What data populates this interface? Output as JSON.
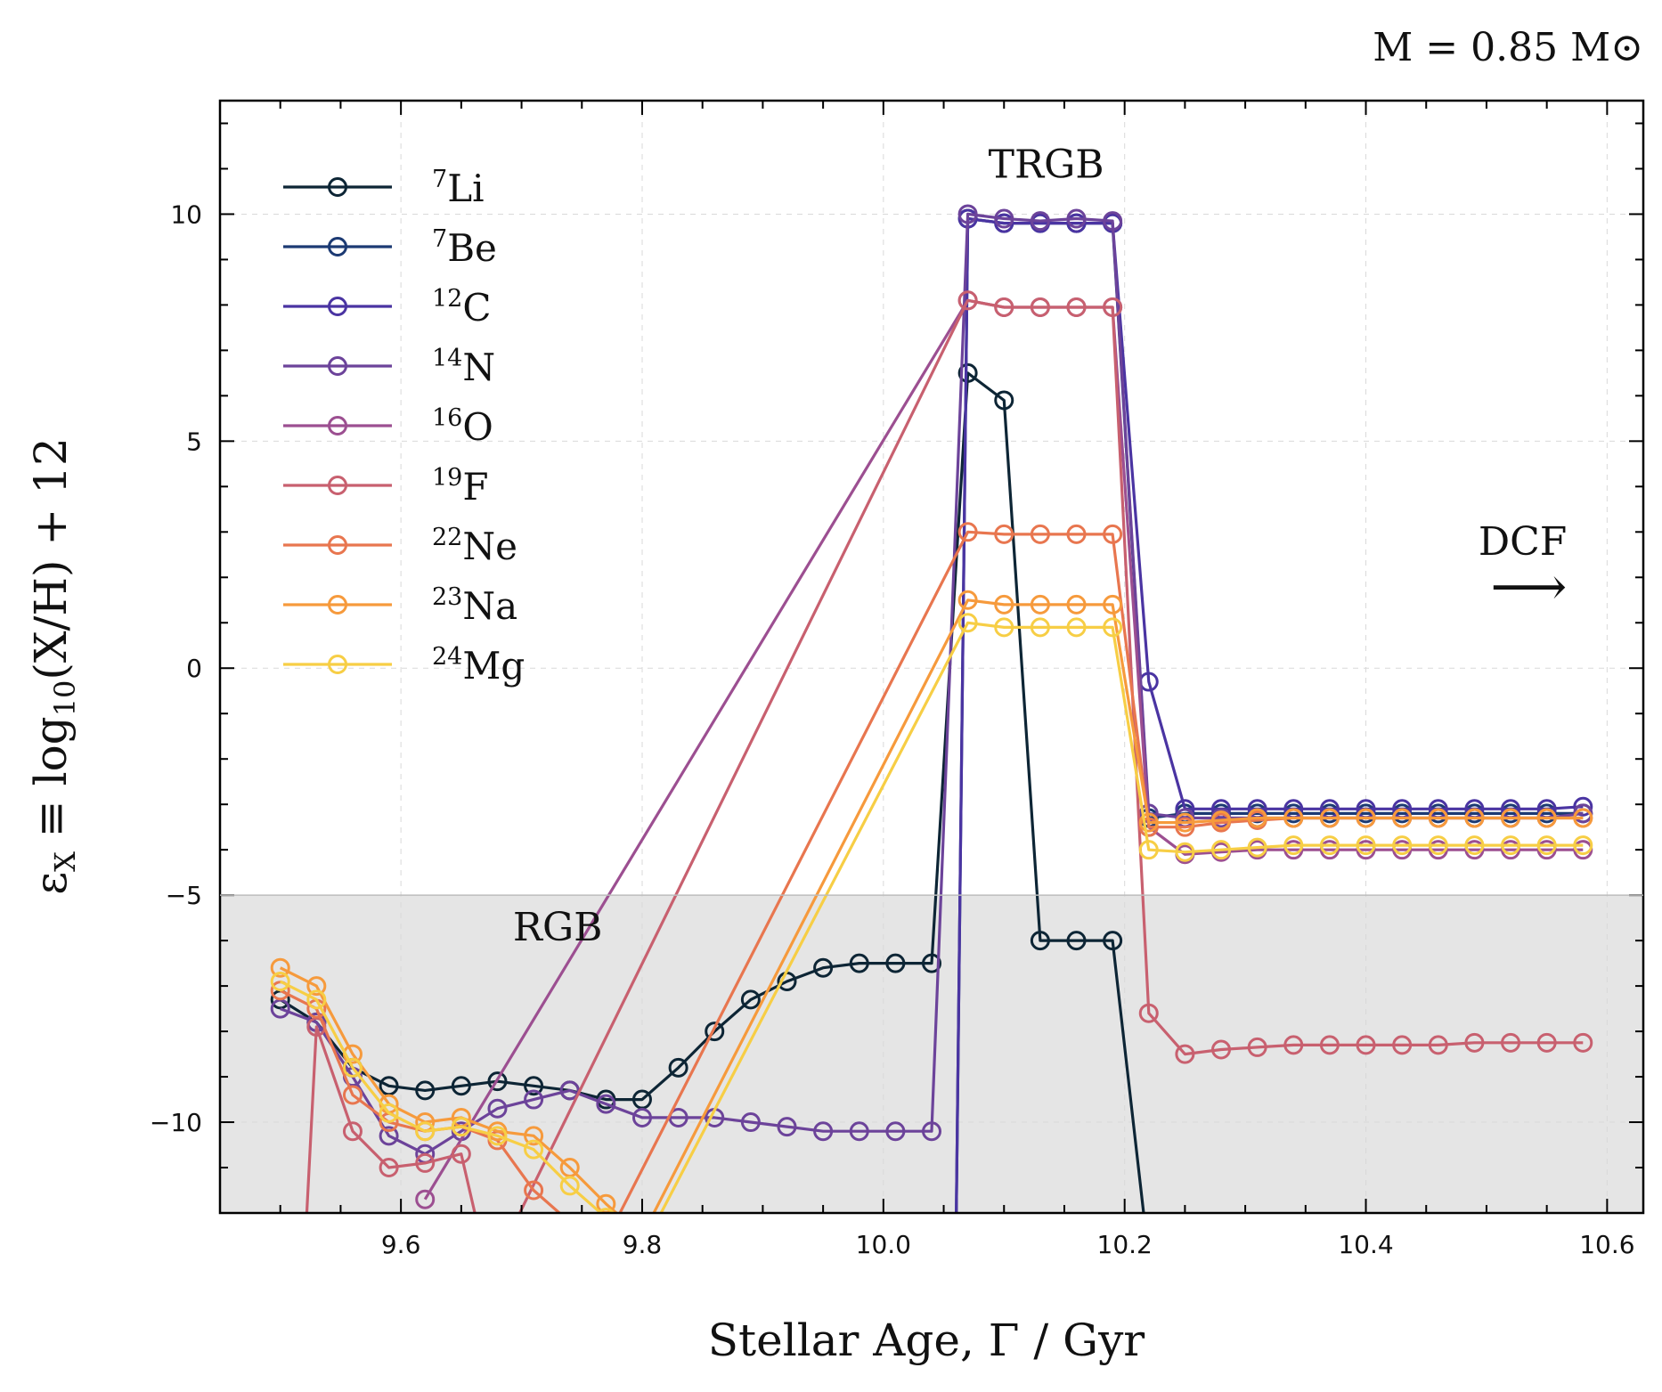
{
  "chart_data": {
    "type": "line",
    "title": "M = 0.85 M⊙",
    "xlabel": "Stellar Age, Γ / Gyr",
    "ylabel": "εX ≡ log10(X/H) + 12",
    "xlim": [
      9.45,
      10.63
    ],
    "ylim": [
      -12,
      12.5
    ],
    "xticks": [
      9.6,
      9.8,
      10.0,
      10.2,
      10.4,
      10.6
    ],
    "xtick_labels": [
      "9.6",
      "9.8",
      "10.0",
      "10.2",
      "10.4",
      "10.6"
    ],
    "yticks": [
      -10,
      -5,
      0,
      5,
      10
    ],
    "ytick_labels": [
      "−10",
      "−5",
      "0",
      "5",
      "10"
    ],
    "grid": true,
    "legend_position": "top-left",
    "shaded_region": {
      "ymin": -12,
      "ymax": -5,
      "color": "#e5e5e5"
    },
    "annotations": [
      {
        "text": "TRGB",
        "x": 10.135,
        "y": 10.8
      },
      {
        "text": "RGB",
        "x": 9.73,
        "y": -6.0
      },
      {
        "text": "DCF",
        "x": 10.53,
        "y": 2.5
      },
      {
        "text": "⟶",
        "x": 10.535,
        "y": 1.4
      }
    ],
    "series": [
      {
        "name": "7Li",
        "sup": "7",
        "el": "Li",
        "color": "#0d2535",
        "x": [
          9.5,
          9.53,
          9.56,
          9.59,
          9.62,
          9.65,
          9.68,
          9.71,
          9.74,
          9.77,
          9.8,
          9.83,
          9.86,
          9.89,
          9.92,
          9.95,
          9.98,
          10.01,
          10.04,
          10.07,
          10.1,
          10.13,
          10.16,
          10.19,
          10.22
        ],
        "y": [
          -7.3,
          -7.8,
          -8.8,
          -9.2,
          -9.3,
          -9.2,
          -9.1,
          -9.2,
          -9.3,
          -9.5,
          -9.5,
          -8.8,
          -8.0,
          -7.3,
          -6.9,
          -6.6,
          -6.5,
          -6.5,
          -6.5,
          6.5,
          5.9,
          -6.0,
          -6.0,
          -6.0,
          -13.0
        ]
      },
      {
        "name": "7Be",
        "sup": "7",
        "el": "Be",
        "color": "#1c3a73",
        "x": [
          10.06,
          10.07,
          10.1,
          10.13,
          10.16,
          10.19,
          10.22,
          10.25,
          10.28,
          10.31,
          10.34,
          10.37,
          10.4,
          10.43,
          10.46,
          10.49,
          10.52,
          10.55,
          10.58
        ],
        "y": [
          -13,
          9.9,
          9.8,
          9.8,
          9.8,
          9.8,
          -3.3,
          -3.2,
          -3.2,
          -3.2,
          -3.2,
          -3.2,
          -3.2,
          -3.2,
          -3.2,
          -3.2,
          -3.2,
          -3.2,
          -3.2
        ]
      },
      {
        "name": "12C",
        "sup": "12",
        "el": "C",
        "color": "#4a34a2",
        "x": [
          10.06,
          10.07,
          10.1,
          10.13,
          10.16,
          10.19,
          10.22,
          10.25,
          10.28,
          10.31,
          10.34,
          10.37,
          10.4,
          10.43,
          10.46,
          10.49,
          10.52,
          10.55,
          10.58
        ],
        "y": [
          -13,
          9.9,
          9.8,
          9.8,
          9.8,
          9.8,
          -0.3,
          -3.1,
          -3.1,
          -3.1,
          -3.1,
          -3.1,
          -3.1,
          -3.1,
          -3.1,
          -3.1,
          -3.1,
          -3.1,
          -3.05
        ]
      },
      {
        "name": "14N",
        "sup": "14",
        "el": "N",
        "color": "#6c439a",
        "x": [
          9.5,
          9.53,
          9.56,
          9.59,
          9.62,
          9.65,
          9.68,
          9.71,
          9.74,
          9.77,
          9.8,
          9.83,
          9.86,
          9.89,
          9.92,
          9.95,
          9.98,
          10.01,
          10.04,
          10.07,
          10.1,
          10.13,
          10.16,
          10.19,
          10.22,
          10.25,
          10.28,
          10.31,
          10.34,
          10.37,
          10.4,
          10.43,
          10.46,
          10.49,
          10.52,
          10.55,
          10.58
        ],
        "y": [
          -7.5,
          -7.8,
          -9.0,
          -10.3,
          -10.7,
          -10.2,
          -9.7,
          -9.5,
          -9.3,
          -9.6,
          -9.9,
          -9.9,
          -9.9,
          -10.0,
          -10.1,
          -10.2,
          -10.2,
          -10.2,
          -10.2,
          10.0,
          9.9,
          9.85,
          9.9,
          9.85,
          -3.2,
          -3.3,
          -3.3,
          -3.3,
          -3.3,
          -3.3,
          -3.3,
          -3.3,
          -3.3,
          -3.3,
          -3.3,
          -3.3,
          -3.2
        ]
      },
      {
        "name": "16O",
        "sup": "16",
        "el": "O",
        "color": "#9c4f91",
        "x": [
          9.62,
          10.07,
          10.1,
          10.13,
          10.16,
          10.19,
          10.22,
          10.25,
          10.28,
          10.31,
          10.34,
          10.37,
          10.4,
          10.43,
          10.46,
          10.49,
          10.52,
          10.55,
          10.58
        ],
        "y": [
          -11.7,
          8.1,
          7.95,
          7.95,
          7.95,
          7.95,
          -3.5,
          -4.1,
          -4.05,
          -4.0,
          -4.0,
          -4.0,
          -4.0,
          -4.0,
          -4.0,
          -4.0,
          -4.0,
          -4.0,
          -4.0
        ]
      },
      {
        "name": "19F",
        "sup": "19",
        "el": "F",
        "color": "#c8606f",
        "x": [
          9.52,
          9.53,
          9.56,
          9.59,
          9.62,
          9.65,
          9.67,
          9.68,
          10.07,
          10.1,
          10.13,
          10.16,
          10.19,
          10.22,
          10.25,
          10.28,
          10.31,
          10.34,
          10.37,
          10.4,
          10.43,
          10.46,
          10.49,
          10.52,
          10.55,
          10.58
        ],
        "y": [
          -13,
          -7.9,
          -10.2,
          -11.0,
          -10.9,
          -10.7,
          -13,
          -13,
          8.1,
          7.95,
          7.95,
          7.95,
          7.95,
          -7.6,
          -8.5,
          -8.4,
          -8.35,
          -8.3,
          -8.3,
          -8.3,
          -8.3,
          -8.3,
          -8.25,
          -8.25,
          -8.25,
          -8.25
        ]
      },
      {
        "name": "22Ne",
        "sup": "22",
        "el": "Ne",
        "color": "#e8764f",
        "x": [
          9.5,
          9.53,
          9.56,
          9.59,
          9.62,
          9.65,
          9.68,
          9.71,
          9.74,
          9.77,
          10.07,
          10.1,
          10.13,
          10.16,
          10.19,
          10.22,
          10.25,
          10.28,
          10.31,
          10.34,
          10.37,
          10.4,
          10.43,
          10.46,
          10.49,
          10.52,
          10.55,
          10.58
        ],
        "y": [
          -7.1,
          -7.5,
          -9.4,
          -10.0,
          -10.2,
          -10.1,
          -10.4,
          -11.5,
          -12.2,
          -12.6,
          3.0,
          2.95,
          2.95,
          2.95,
          2.95,
          -3.5,
          -3.5,
          -3.4,
          -3.35,
          -3.3,
          -3.3,
          -3.3,
          -3.3,
          -3.3,
          -3.3,
          -3.3,
          -3.3,
          -3.3
        ]
      },
      {
        "name": "23Na",
        "sup": "23",
        "el": "Na",
        "color": "#f69a3c",
        "x": [
          9.5,
          9.53,
          9.56,
          9.59,
          9.62,
          9.65,
          9.68,
          9.71,
          9.74,
          9.77,
          9.8,
          10.07,
          10.1,
          10.13,
          10.16,
          10.19,
          10.22,
          10.25,
          10.28,
          10.31,
          10.34,
          10.37,
          10.4,
          10.43,
          10.46,
          10.49,
          10.52,
          10.55,
          10.58
        ],
        "y": [
          -6.6,
          -7.0,
          -8.5,
          -9.6,
          -10.0,
          -9.9,
          -10.2,
          -10.3,
          -11.0,
          -11.8,
          -12.5,
          1.5,
          1.4,
          1.4,
          1.4,
          1.4,
          -3.4,
          -3.4,
          -3.35,
          -3.3,
          -3.3,
          -3.3,
          -3.3,
          -3.3,
          -3.3,
          -3.3,
          -3.3,
          -3.3,
          -3.3
        ]
      },
      {
        "name": "24Mg",
        "sup": "24",
        "el": "Mg",
        "color": "#f7ce45",
        "x": [
          9.5,
          9.53,
          9.56,
          9.59,
          9.62,
          9.65,
          9.68,
          9.71,
          9.74,
          9.77,
          9.8,
          10.07,
          10.1,
          10.13,
          10.16,
          10.19,
          10.22,
          10.25,
          10.28,
          10.31,
          10.34,
          10.37,
          10.4,
          10.43,
          10.46,
          10.49,
          10.52,
          10.55,
          10.58
        ],
        "y": [
          -6.9,
          -7.3,
          -8.8,
          -9.8,
          -10.2,
          -10.1,
          -10.3,
          -10.6,
          -11.4,
          -12.1,
          -12.8,
          1.0,
          0.9,
          0.9,
          0.9,
          0.9,
          -4.0,
          -4.05,
          -4.0,
          -3.95,
          -3.9,
          -3.9,
          -3.9,
          -3.9,
          -3.9,
          -3.9,
          -3.9,
          -3.9,
          -3.9
        ]
      }
    ]
  }
}
